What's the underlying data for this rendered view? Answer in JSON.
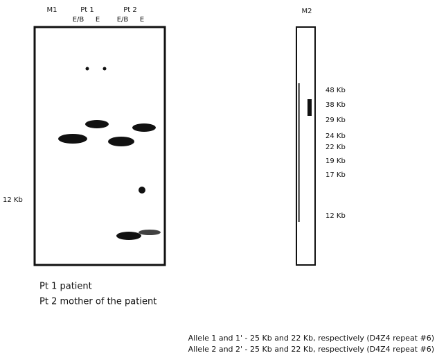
{
  "left_gel": {
    "lanes": {
      "m1": "M1",
      "pt1": "Pt 1",
      "pt1_eb": "E/B",
      "pt1_e": "E",
      "pt2": "Pt 2",
      "pt2_eb": "E/B",
      "pt2_e": "E"
    },
    "marker": "12 Kb"
  },
  "right_gel": {
    "lane": "M2",
    "markers": [
      "48 Kb",
      "38 Kb",
      "29 Kb",
      "24 Kb",
      "22 Kb",
      "19 Kb",
      "17 Kb",
      "12 Kb"
    ]
  },
  "legend": [
    "Pt 1 patient",
    "Pt 2 mother of the patient"
  ],
  "caption": [
    "Allele 1 and 1' - 25 Kb and 22 Kb, respectively (D4Z4 repeat #6)",
    "Allele 2 and 2' - 25 Kb and 22 Kb, respectively (D4Z4 repeat #6)"
  ]
}
